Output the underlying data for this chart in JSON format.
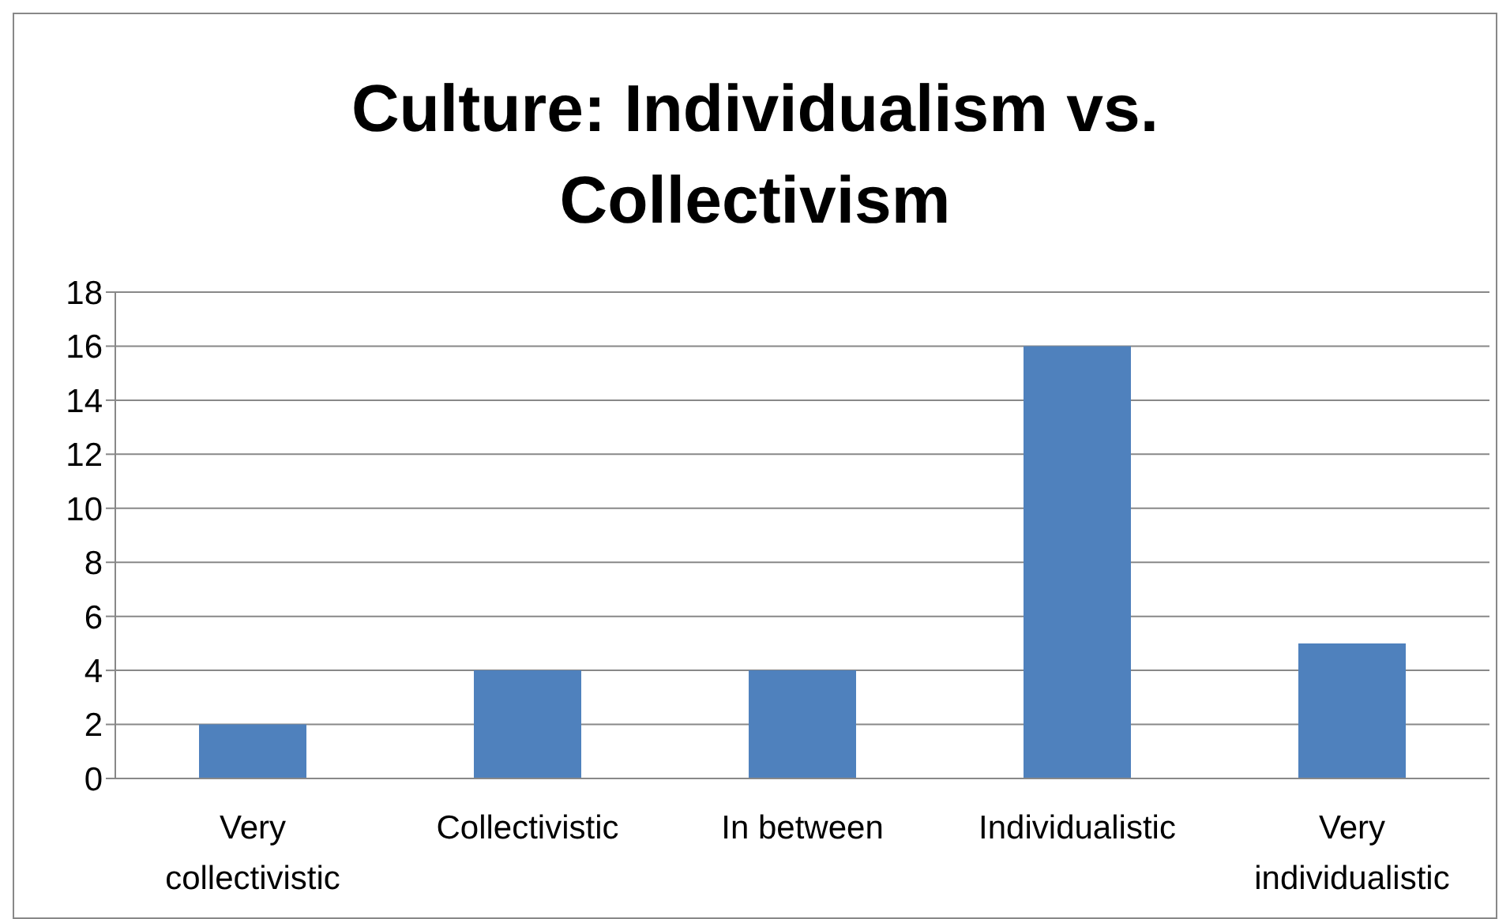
{
  "chart_data": {
    "type": "bar",
    "title": "Culture: Individualism vs. Collectivism",
    "categories": [
      "Very collectivistic",
      "Collectivistic",
      "In between",
      "Individualistic",
      "Very individualistic"
    ],
    "values": [
      2,
      4,
      4,
      16,
      5
    ],
    "color": "#4f81bd",
    "ylim": [
      0,
      18
    ],
    "yticks": [
      0,
      2,
      4,
      6,
      8,
      10,
      12,
      14,
      16,
      18
    ],
    "grid": "y"
  }
}
